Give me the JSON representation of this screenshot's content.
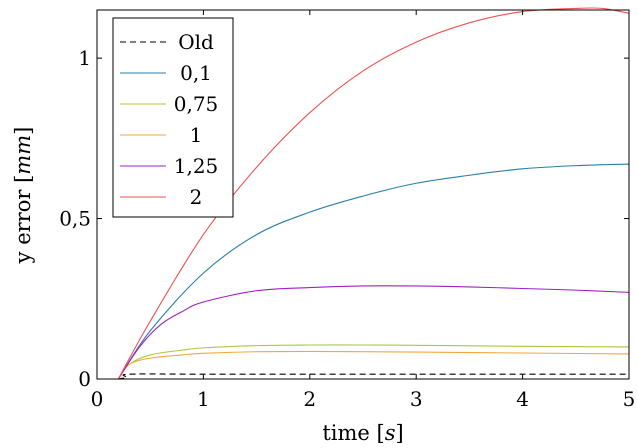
{
  "chart_data": {
    "type": "line",
    "title": "",
    "xlabel": "time",
    "xunit": "s",
    "ylabel": "y error",
    "yunit": "mm",
    "xlim": [
      0,
      5
    ],
    "ylim": [
      0,
      1.15
    ],
    "xticks": [
      0,
      1,
      2,
      3,
      4,
      5
    ],
    "xtick_labels": [
      "0",
      "1",
      "2",
      "3",
      "4",
      "5"
    ],
    "yticks": [
      0,
      0.5,
      1
    ],
    "ytick_labels": [
      "0",
      "0,5",
      "1"
    ],
    "grid": false,
    "legend_position": "top-left",
    "series": [
      {
        "name": "Old",
        "color": "#000000",
        "dashed": true,
        "x": [
          0.2,
          0.28,
          0.3,
          1,
          2,
          3,
          4,
          5
        ],
        "y": [
          0,
          0.005,
          0.015,
          0.015,
          0.015,
          0.015,
          0.015,
          0.015
        ]
      },
      {
        "name": "0,1",
        "color": "#2a7fa8",
        "dashed": false,
        "x": [
          0.2,
          0.5,
          1,
          1.5,
          2,
          2.5,
          3,
          3.5,
          4,
          4.5,
          5
        ],
        "y": [
          0,
          0.15,
          0.33,
          0.45,
          0.52,
          0.57,
          0.61,
          0.635,
          0.655,
          0.665,
          0.67
        ]
      },
      {
        "name": "0,75",
        "color": "#a9c93e",
        "dashed": false,
        "x": [
          0.2,
          0.3,
          0.5,
          0.8,
          1,
          1.5,
          2,
          2.5,
          3,
          4,
          5
        ],
        "y": [
          0,
          0.045,
          0.075,
          0.09,
          0.097,
          0.104,
          0.106,
          0.106,
          0.105,
          0.102,
          0.1
        ]
      },
      {
        "name": "1",
        "color": "#f2a93b",
        "dashed": false,
        "x": [
          0.2,
          0.3,
          0.5,
          0.8,
          1,
          1.5,
          2,
          2.5,
          3,
          4,
          5
        ],
        "y": [
          0,
          0.045,
          0.065,
          0.075,
          0.08,
          0.085,
          0.086,
          0.085,
          0.084,
          0.081,
          0.078
        ]
      },
      {
        "name": "1,25",
        "color": "#a020c0",
        "dashed": false,
        "x": [
          0.2,
          0.4,
          0.6,
          0.8,
          1,
          1.5,
          2,
          2.5,
          3,
          3.5,
          4,
          4.5,
          5
        ],
        "y": [
          0,
          0.1,
          0.17,
          0.21,
          0.24,
          0.275,
          0.285,
          0.29,
          0.29,
          0.287,
          0.282,
          0.277,
          0.27
        ]
      },
      {
        "name": "2",
        "color": "#f25050",
        "dashed": false,
        "x": [
          0.2,
          0.5,
          1,
          1.5,
          2,
          2.5,
          3,
          3.5,
          4,
          4.5,
          4.75,
          5
        ],
        "y": [
          0,
          0.18,
          0.45,
          0.66,
          0.83,
          0.96,
          1.05,
          1.11,
          1.145,
          1.155,
          1.155,
          1.14
        ]
      }
    ]
  }
}
